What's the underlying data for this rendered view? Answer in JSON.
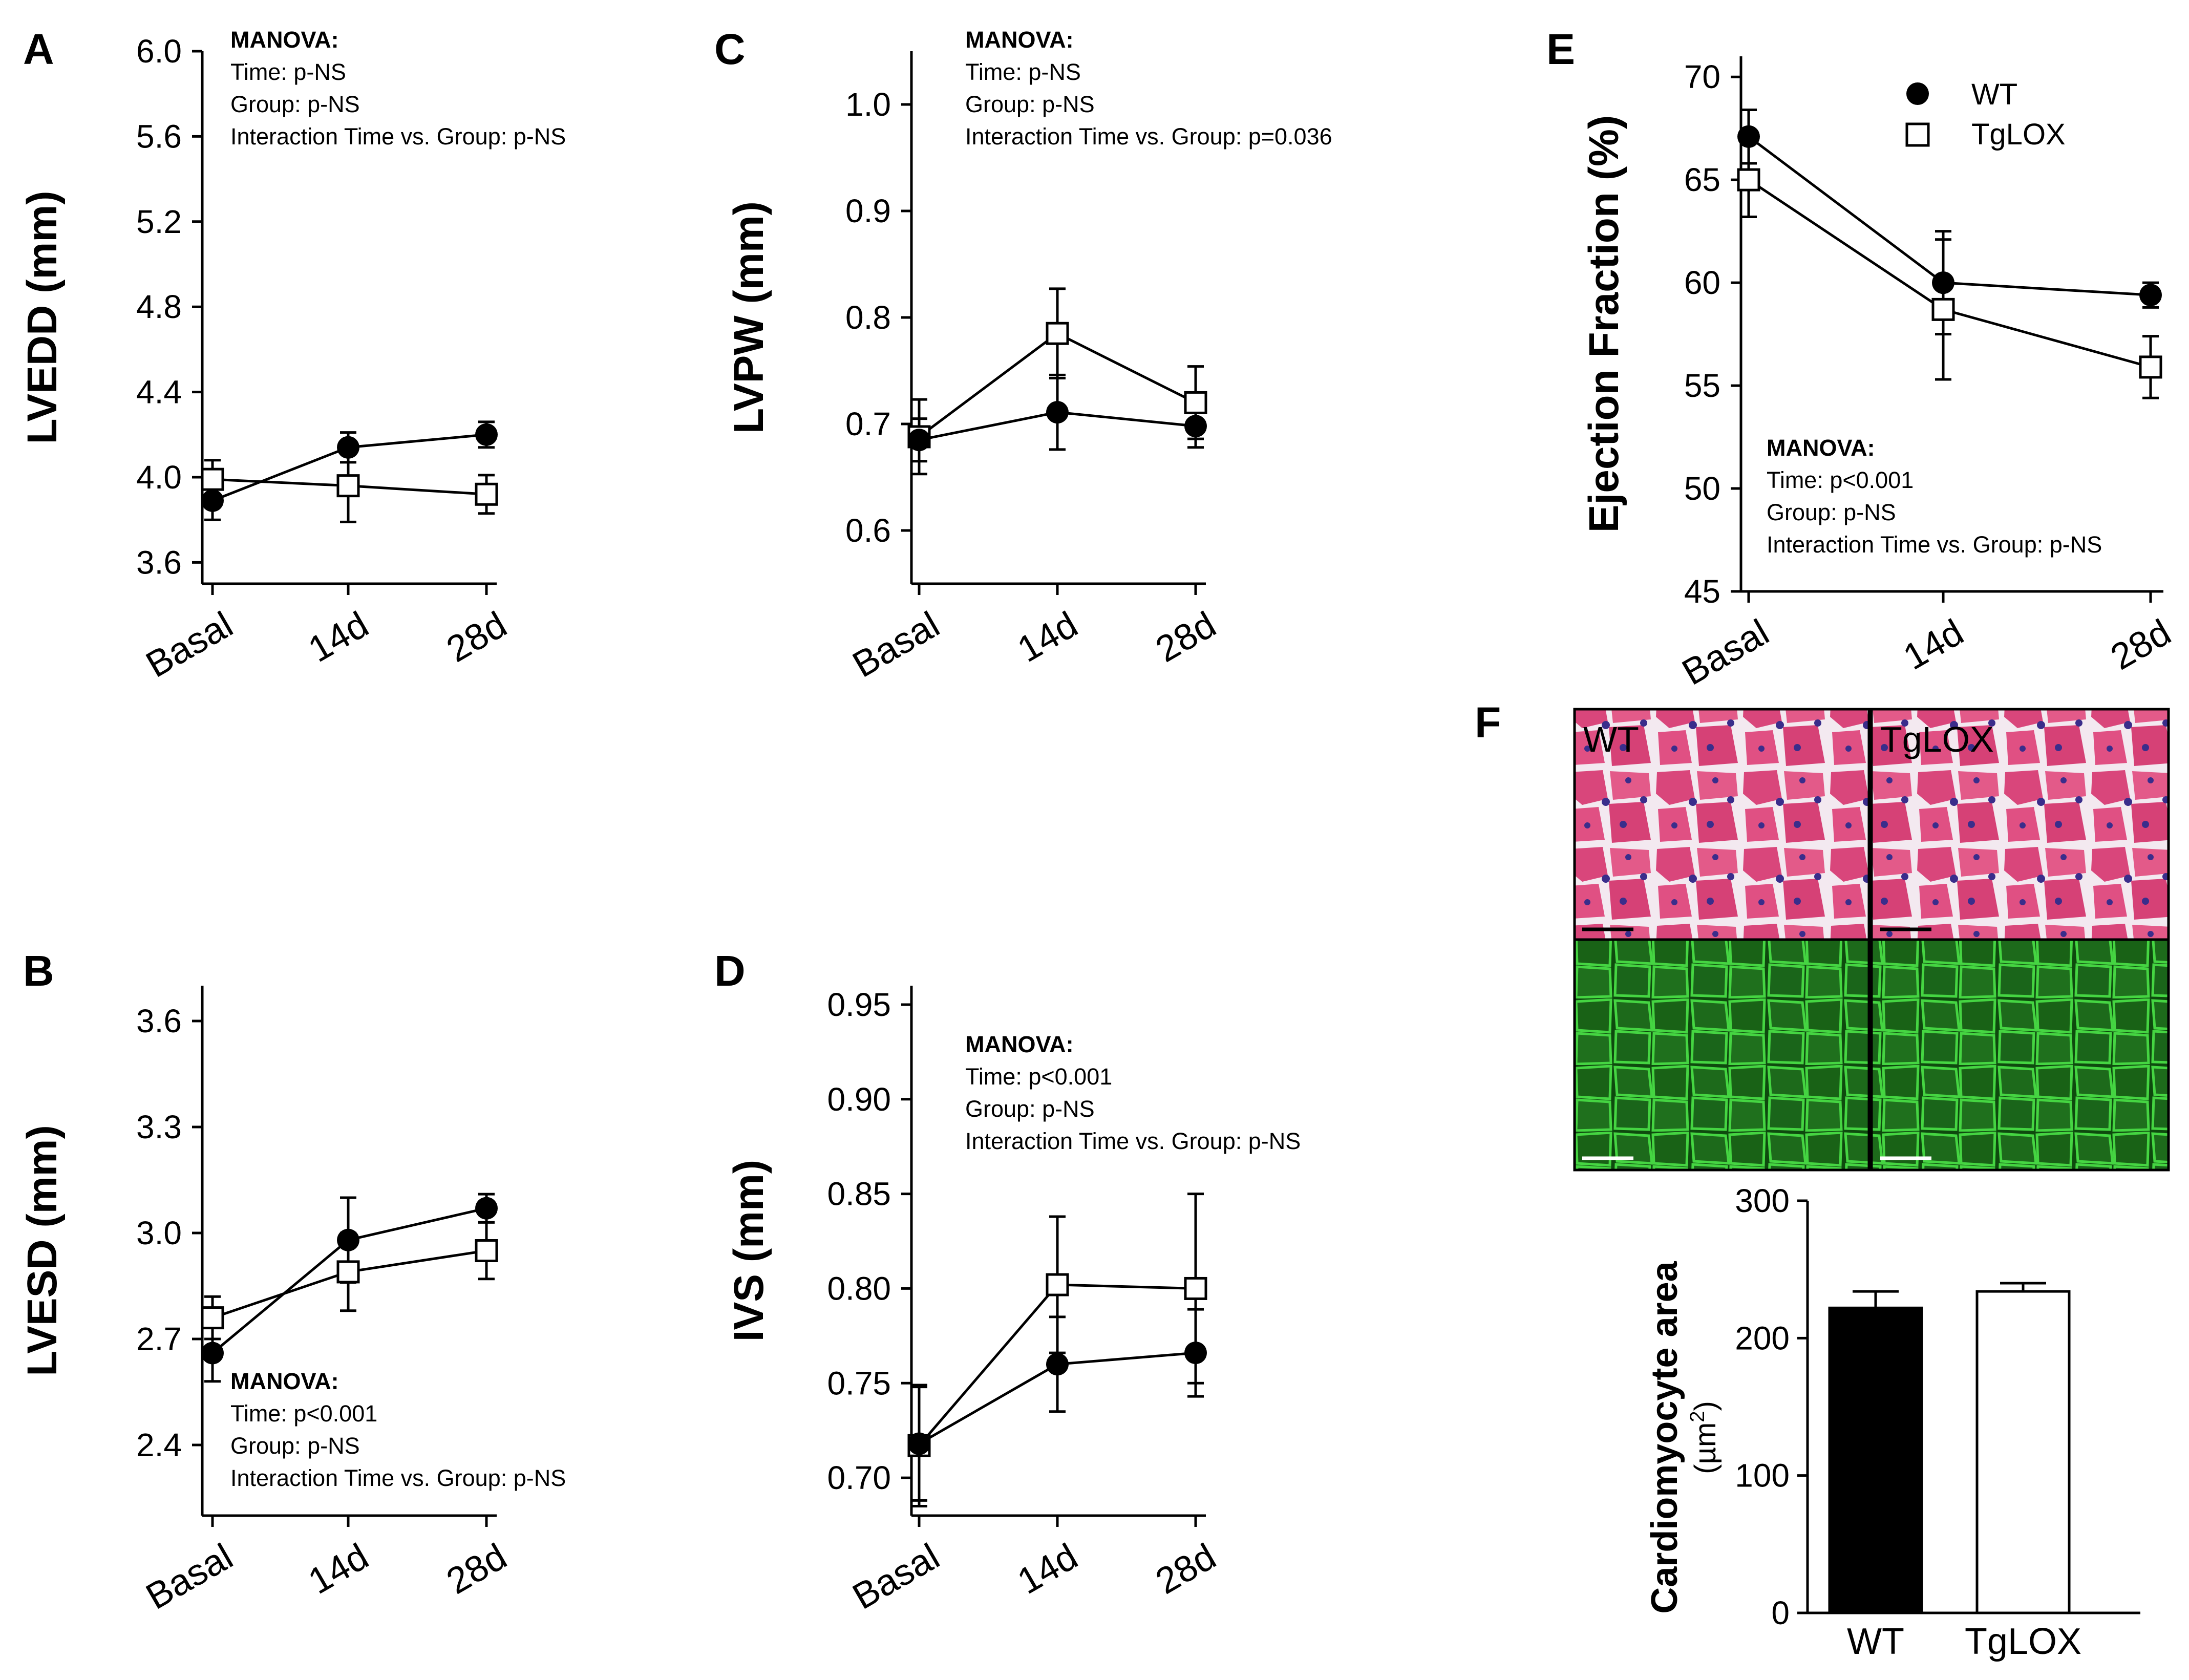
{
  "figure": {
    "panel_letters": [
      "A",
      "B",
      "C",
      "D",
      "E",
      "F"
    ],
    "legend": {
      "items": [
        "WT",
        "TgLOX"
      ]
    },
    "histology": {
      "labels": [
        "WT",
        "TgLOX"
      ],
      "top_colors": {
        "bg": "#d8487c",
        "cell": "#e8688e",
        "gap": "#f6eef4",
        "nuclei": "#3b2f8e"
      },
      "bottom_colors": {
        "bg": "#0b3a0b",
        "membrane": "#3ccf3a"
      }
    },
    "colors": {
      "wt": "#000000",
      "tglox": "#ffffff",
      "axis": "#000000"
    },
    "icons": {
      "wt_marker": "filled-circle-icon",
      "tglox_marker": "open-square-icon"
    }
  },
  "chart_data": [
    {
      "id": "A",
      "type": "line",
      "ylabel": "LVEDD (mm)",
      "categories": [
        "Basal",
        "14d",
        "28d"
      ],
      "ylim": [
        3.5,
        6.0
      ],
      "yticks": [
        "3.6",
        "4.0",
        "4.4",
        "4.8",
        "5.2",
        "5.6",
        "6.0"
      ],
      "series": [
        {
          "name": "WT",
          "values": [
            3.89,
            4.14,
            4.2
          ],
          "errors": [
            0.09,
            0.07,
            0.06
          ]
        },
        {
          "name": "TgLOX",
          "values": [
            3.99,
            3.96,
            3.92
          ],
          "errors": [
            0.09,
            0.17,
            0.09
          ]
        }
      ],
      "annotation": [
        "MANOVA:",
        "Time: p-NS",
        "Group: p-NS",
        "Interaction Time vs. Group: p-NS"
      ]
    },
    {
      "id": "B",
      "type": "line",
      "ylabel": "LVESD (mm)",
      "categories": [
        "Basal",
        "14d",
        "28d"
      ],
      "ylim": [
        2.2,
        3.7
      ],
      "yticks": [
        "2.4",
        "2.7",
        "3.0",
        "3.3",
        "3.6"
      ],
      "series": [
        {
          "name": "WT",
          "values": [
            2.66,
            2.98,
            3.07
          ],
          "errors": [
            0.08,
            0.12,
            0.04
          ]
        },
        {
          "name": "TgLOX",
          "values": [
            2.76,
            2.89,
            2.95
          ],
          "errors": [
            0.06,
            0.11,
            0.08
          ]
        }
      ],
      "annotation": [
        "MANOVA:",
        "Time: p<0.001",
        "Group: p-NS",
        "Interaction Time vs. Group: p-NS"
      ]
    },
    {
      "id": "C",
      "type": "line",
      "ylabel": "LVPW (mm)",
      "categories": [
        "Basal",
        "14d",
        "28d"
      ],
      "ylim": [
        0.55,
        1.05
      ],
      "yticks": [
        "0.6",
        "0.7",
        "0.8",
        "0.9",
        "1.0"
      ],
      "series": [
        {
          "name": "WT",
          "values": [
            0.685,
            0.711,
            0.698
          ],
          "errors": [
            0.02,
            0.035,
            0.02
          ]
        },
        {
          "name": "TgLOX",
          "values": [
            0.688,
            0.785,
            0.72
          ],
          "errors": [
            0.035,
            0.042,
            0.034
          ]
        }
      ],
      "annotation": [
        "MANOVA:",
        "Time: p-NS",
        "Group: p-NS",
        "Interaction Time vs. Group: p=0.036"
      ]
    },
    {
      "id": "D",
      "type": "line",
      "ylabel": "IVS (mm)",
      "categories": [
        "Basal",
        "14d",
        "28d"
      ],
      "ylim": [
        0.68,
        0.96
      ],
      "yticks": [
        "0.70",
        "0.75",
        "0.80",
        "0.85",
        "0.90",
        "0.95"
      ],
      "series": [
        {
          "name": "WT",
          "values": [
            0.718,
            0.76,
            0.766
          ],
          "errors": [
            0.03,
            0.025,
            0.023
          ]
        },
        {
          "name": "TgLOX",
          "values": [
            0.717,
            0.802,
            0.8
          ],
          "errors": [
            0.032,
            0.036,
            0.05
          ]
        }
      ],
      "annotation": [
        "MANOVA:",
        "Time: p<0.001",
        "Group: p-NS",
        "Interaction Time vs. Group: p-NS"
      ]
    },
    {
      "id": "E",
      "type": "line",
      "ylabel": "Ejection Fraction (%)",
      "categories": [
        "Basal",
        "14d",
        "28d"
      ],
      "ylim": [
        45,
        71
      ],
      "yticks": [
        "45",
        "50",
        "55",
        "60",
        "65",
        "70"
      ],
      "series": [
        {
          "name": "WT",
          "values": [
            67.1,
            60.0,
            59.4
          ],
          "errors": [
            1.3,
            2.5,
            0.6
          ]
        },
        {
          "name": "TgLOX",
          "values": [
            65.0,
            58.7,
            55.9
          ],
          "errors": [
            1.8,
            3.4,
            1.5
          ]
        }
      ],
      "annotation": [
        "MANOVA:",
        "Time: p<0.001",
        "Group: p-NS",
        "Interaction Time vs. Group: p-NS"
      ]
    },
    {
      "id": "F",
      "type": "bar",
      "ylabel": "Cardiomyocyte area",
      "yunit": "(µm",
      "yunit_sup": "2",
      "yunit_close": ")",
      "categories": [
        "WT",
        "TgLOX"
      ],
      "values": [
        222,
        234
      ],
      "errors": [
        12,
        6
      ],
      "ylim": [
        0,
        300
      ],
      "yticks": [
        "0",
        "100",
        "200",
        "300"
      ]
    }
  ]
}
